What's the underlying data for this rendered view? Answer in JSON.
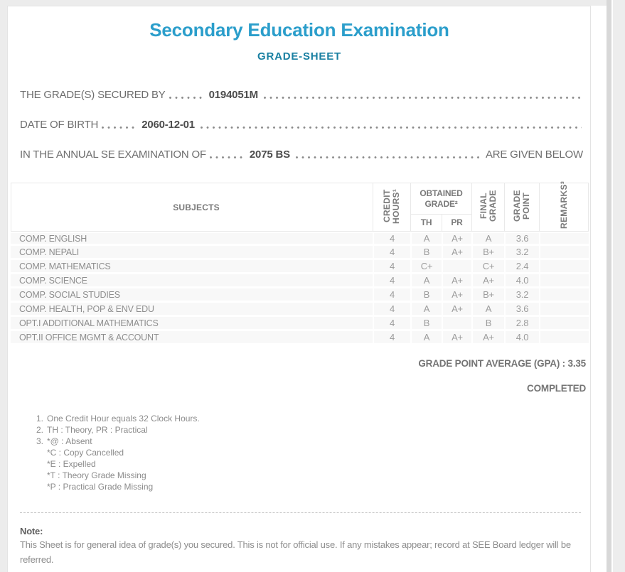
{
  "page": {
    "title": "Secondary Education Examination",
    "subtitle": "GRADE-SHEET",
    "accent_title_color": "#2b9ecb",
    "accent_subtitle_color": "#1a80a2"
  },
  "info": {
    "secured_by_label": "THE GRADE(S) SECURED BY",
    "secured_by_value": "0194051M",
    "dob_label": "DATE OF BIRTH",
    "dob_value": "2060-12-01",
    "exam_label": "IN THE ANNUAL SE EXAMINATION OF",
    "exam_value": "2075 BS",
    "exam_suffix": "ARE GIVEN BELOW"
  },
  "table": {
    "headers": {
      "subjects": "SUBJECTS",
      "credit_hours": "CREDIT HOURS¹",
      "obtained_grade": "OBTAINED GRADE²",
      "th": "TH",
      "pr": "PR",
      "final_grade": "FINAL GRADE",
      "grade_point": "GRADE POINT",
      "remarks": "REMARKS³"
    },
    "rows": [
      {
        "subject": "COMP. ENGLISH",
        "credit": "4",
        "th": "A",
        "pr": "A+",
        "final": "A",
        "point": "3.6",
        "remarks": ""
      },
      {
        "subject": "COMP. NEPALI",
        "credit": "4",
        "th": "B",
        "pr": "A+",
        "final": "B+",
        "point": "3.2",
        "remarks": ""
      },
      {
        "subject": "COMP. MATHEMATICS",
        "credit": "4",
        "th": "C+",
        "pr": "",
        "final": "C+",
        "point": "2.4",
        "remarks": ""
      },
      {
        "subject": "COMP. SCIENCE",
        "credit": "4",
        "th": "A",
        "pr": "A+",
        "final": "A+",
        "point": "4.0",
        "remarks": ""
      },
      {
        "subject": "COMP. SOCIAL STUDIES",
        "credit": "4",
        "th": "B",
        "pr": "A+",
        "final": "B+",
        "point": "3.2",
        "remarks": ""
      },
      {
        "subject": "COMP. HEALTH, POP & ENV EDU",
        "credit": "4",
        "th": "A",
        "pr": "A+",
        "final": "A",
        "point": "3.6",
        "remarks": ""
      },
      {
        "subject": "OPT.I ADDITIONAL MATHEMATICS",
        "credit": "4",
        "th": "B",
        "pr": "",
        "final": "B",
        "point": "2.8",
        "remarks": ""
      },
      {
        "subject": "OPT.II OFFICE MGMT & ACCOUNT",
        "credit": "4",
        "th": "A",
        "pr": "A+",
        "final": "A+",
        "point": "4.0",
        "remarks": ""
      }
    ]
  },
  "summary": {
    "gpa_line": "GRADE POINT AVERAGE (GPA) : 3.35",
    "status": "COMPLETED"
  },
  "footnotes": {
    "lines": [
      {
        "num": "1.",
        "text": "One Credit Hour equals 32 Clock Hours."
      },
      {
        "num": "2.",
        "text": "TH : Theory, PR : Practical"
      },
      {
        "num": "3.",
        "text": "*@ : Absent"
      },
      {
        "num": "",
        "text": "*C : Copy Cancelled"
      },
      {
        "num": "",
        "text": "*E : Expelled"
      },
      {
        "num": "",
        "text": "*T : Theory Grade Missing"
      },
      {
        "num": "",
        "text": "*P : Practical Grade Missing"
      }
    ]
  },
  "note": {
    "title": "Note:",
    "body": "This Sheet is for general idea of grade(s) you secured. This is not for official use. If any mistakes appear; record at SEE Board ledger will be referred."
  }
}
